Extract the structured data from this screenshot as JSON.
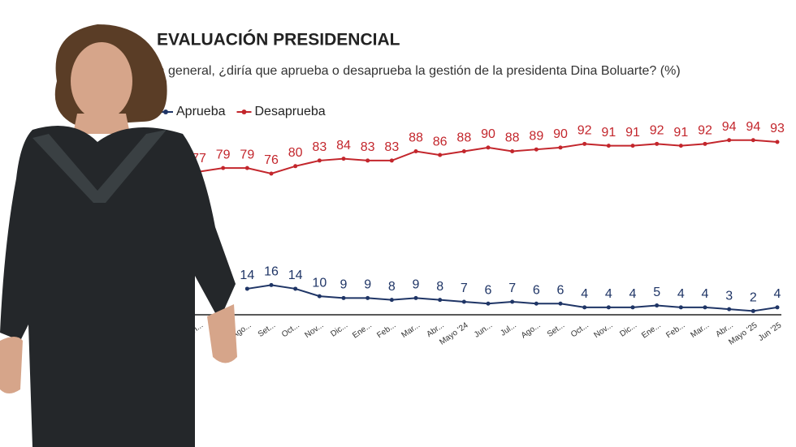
{
  "chart_data": {
    "type": "line",
    "title": "EVALUACIÓN PRESIDENCIAL",
    "subtitle": "En general, ¿diría que aprueba o desaprueba la gestión de la presidenta Dina Boluarte? (%)",
    "categories": [
      "Jun...",
      null,
      "Ago...",
      "Set...",
      "Oct...",
      "Nov...",
      "Dic...",
      "Ene...",
      "Feb...",
      "Mar...",
      "Abr...",
      "Mayo '24",
      "Jun...",
      "Jul...",
      "Ago...",
      "Set...",
      "Oct...",
      "Nov...",
      "Dic...",
      "Ene...",
      "Feb...",
      "Mar...",
      "Abr...",
      "Mayo '25",
      "Jun '25"
    ],
    "series": [
      {
        "name": "Aprueba",
        "color": "#1f3566",
        "values": [
          null,
          null,
          14,
          16,
          14,
          10,
          9,
          9,
          8,
          9,
          8,
          7,
          6,
          7,
          6,
          6,
          4,
          4,
          4,
          5,
          4,
          4,
          3,
          2,
          4
        ]
      },
      {
        "name": "Desaprueba",
        "color": "#c3262c",
        "values": [
          77,
          79,
          79,
          76,
          80,
          83,
          84,
          83,
          83,
          88,
          86,
          88,
          90,
          88,
          89,
          90,
          92,
          91,
          91,
          92,
          91,
          92,
          94,
          94,
          93
        ]
      }
    ],
    "ylim": [
      0,
      100
    ],
    "legend": "top-left"
  }
}
